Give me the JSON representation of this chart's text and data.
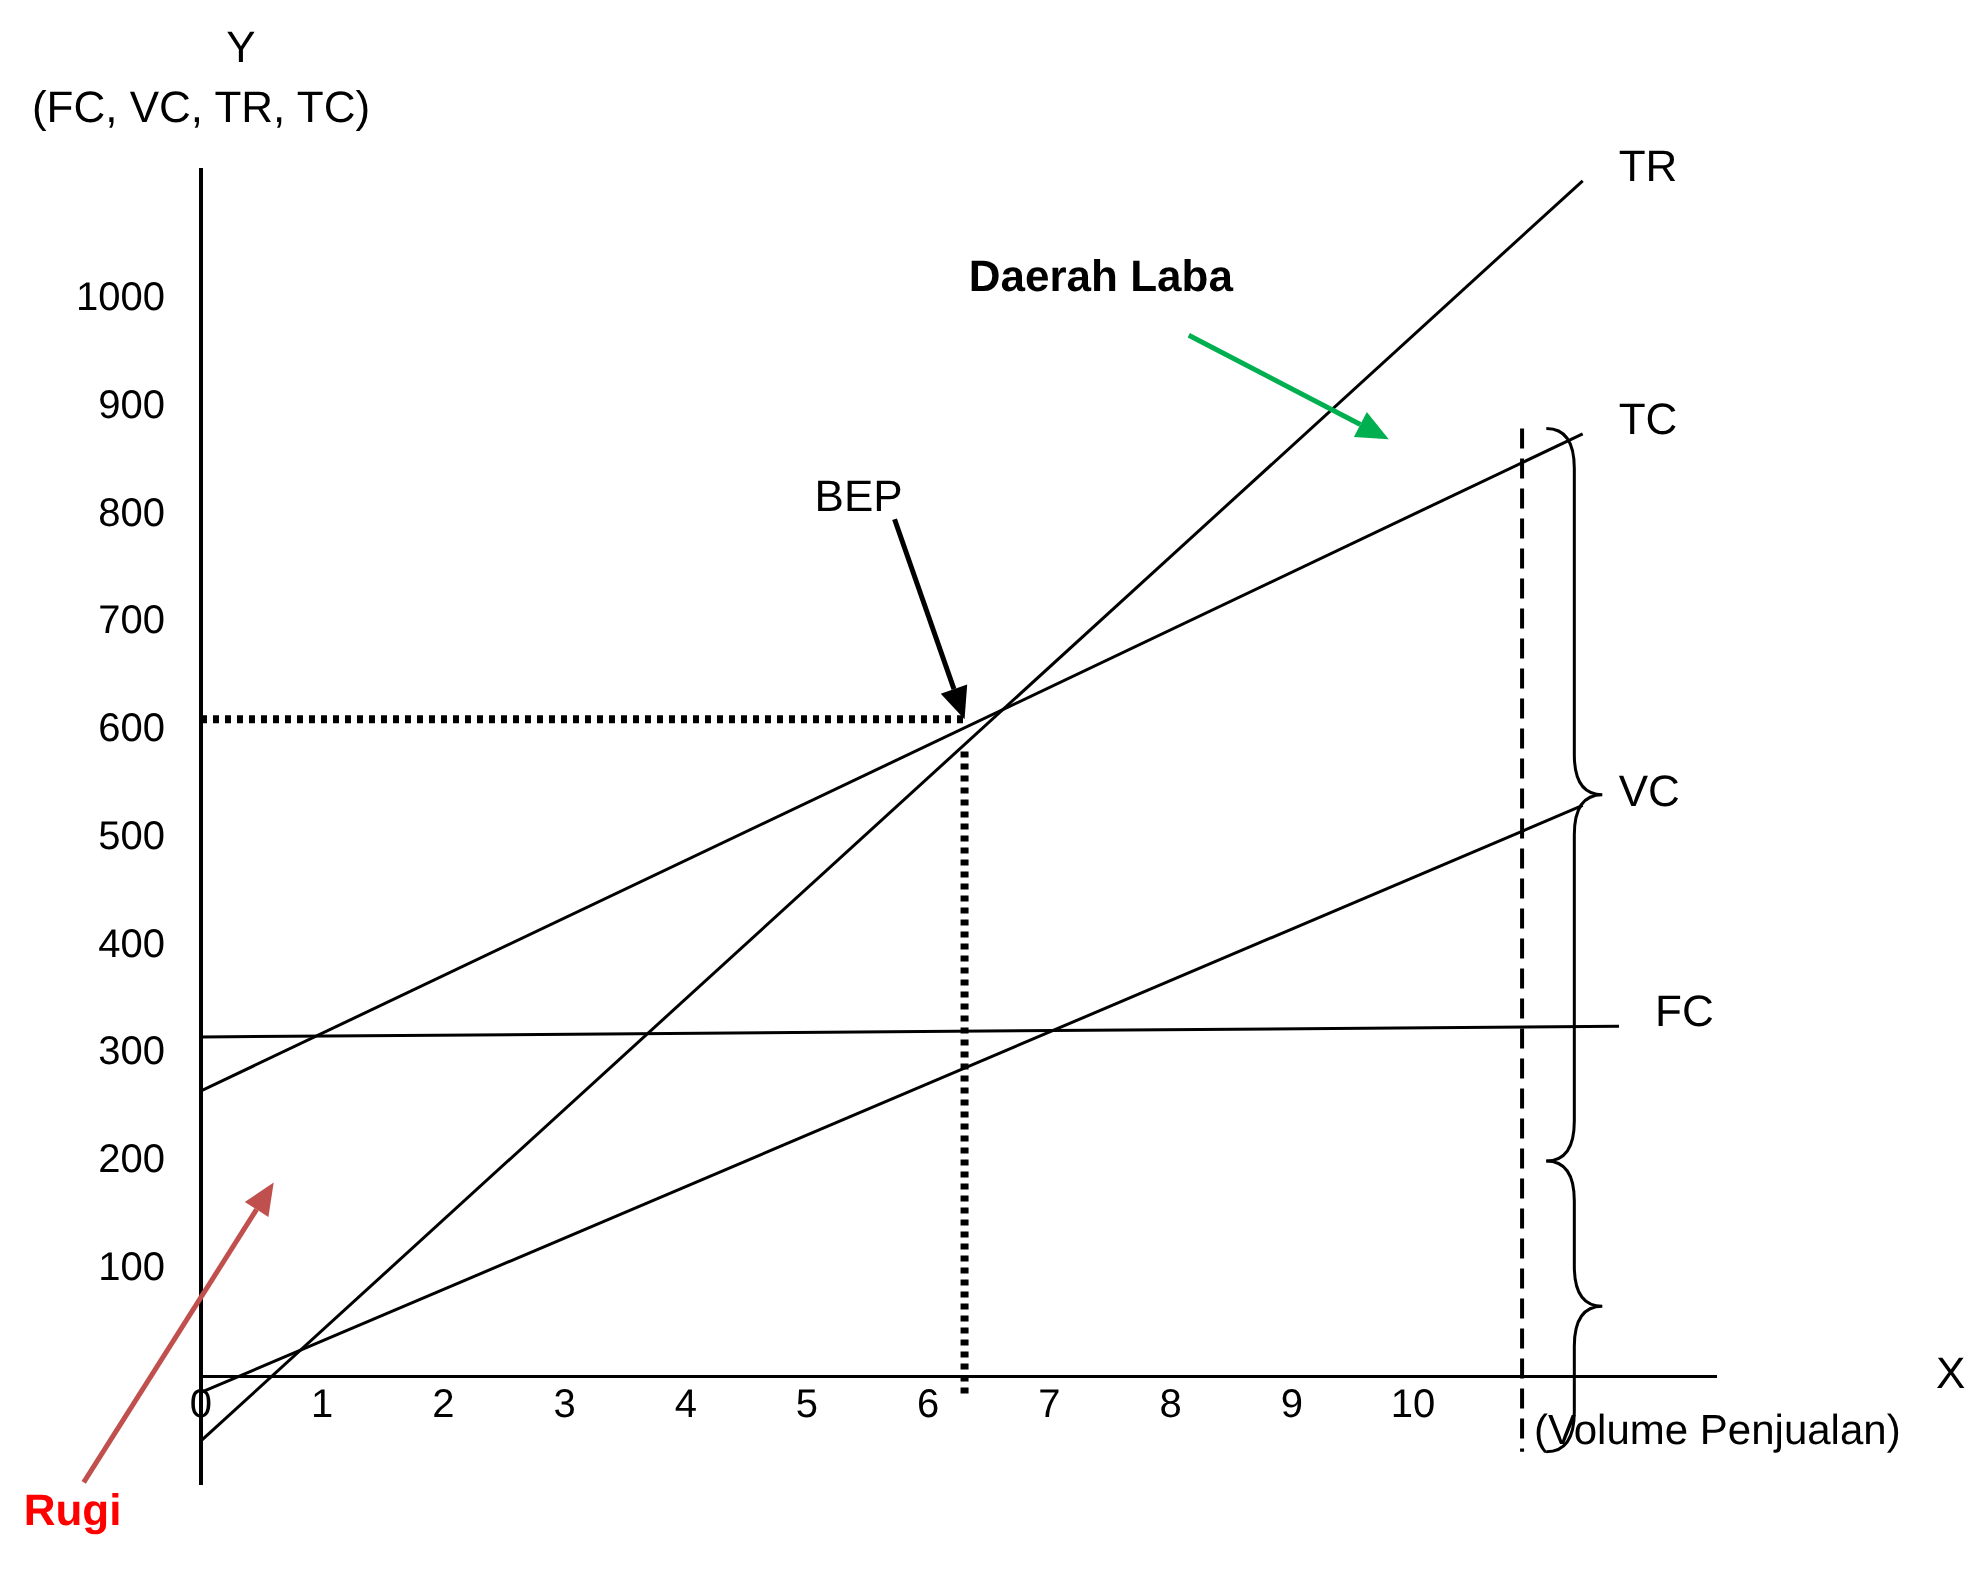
{
  "chart_data": {
    "type": "line",
    "xlabel": "X",
    "ylabel": "Y\n(FC, VC, TR, TC)",
    "xlim": [
      0,
      12.5
    ],
    "ylim": [
      -100,
      1120
    ],
    "xticks": [
      0,
      1,
      2,
      3,
      4,
      5,
      6,
      7,
      8,
      9,
      10
    ],
    "yticks": [
      100,
      200,
      300,
      400,
      500,
      600,
      700,
      800,
      900,
      1000
    ],
    "grid": false,
    "legend": false,
    "marker": "none",
    "series": [
      {
        "name": "TR",
        "color": "#000000",
        "x": [
          0,
          11.4
        ],
        "values": [
          -60,
          1110
        ],
        "line_style": "solid"
      },
      {
        "name": "TC",
        "color": "#000000",
        "x": [
          0,
          11.4
        ],
        "values": [
          265,
          875
        ],
        "line_style": "solid"
      },
      {
        "name": "VC",
        "color": "#000000",
        "x": [
          0,
          11.4
        ],
        "values": [
          -15,
          530
        ],
        "line_style": "solid"
      },
      {
        "name": "FC",
        "color": "#000000",
        "x": [
          0,
          11.7
        ],
        "values": [
          315,
          325
        ],
        "line_style": "solid"
      },
      {
        "color": "#000000",
        "x": [
          0,
          6.3
        ],
        "values": [
          610,
          610
        ],
        "line_style": "dotted"
      },
      {
        "color": "#000000",
        "x": [
          6.3,
          6.3
        ],
        "values": [
          580,
          -20
        ],
        "line_style": "dotted"
      },
      {
        "color": "#000000",
        "x": [
          10.9,
          10.9
        ],
        "values": [
          880,
          -70
        ],
        "line_style": "dashed"
      }
    ],
    "annotations": [
      "BEP",
      "Daerah Laba",
      "Rugi",
      "(Volume Penjualan)"
    ]
  }
}
